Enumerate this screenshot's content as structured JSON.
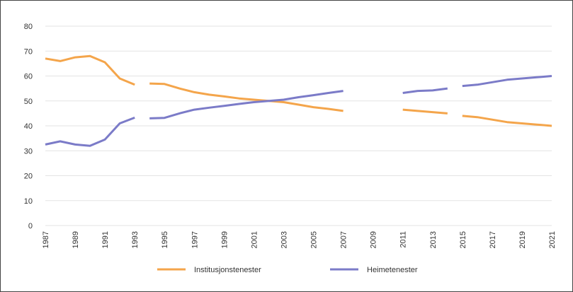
{
  "chart_data": {
    "type": "line",
    "title": "",
    "xlabel": "",
    "ylabel": "",
    "ylim": [
      0,
      80
    ],
    "yticks": [
      0,
      10,
      20,
      30,
      40,
      50,
      60,
      70,
      80
    ],
    "xlim": [
      1987,
      2021
    ],
    "xtick_labels": [
      "1987",
      "1989",
      "1991",
      "1993",
      "1995",
      "1997",
      "1999",
      "2001",
      "2003",
      "2005",
      "2007",
      "2009",
      "2011",
      "2013",
      "2015",
      "2017",
      "2019",
      "2021"
    ],
    "grid": "horizontal",
    "legend_position": "bottom",
    "series": [
      {
        "name": "Institusjonstenester",
        "color": "#f4a54b",
        "points": [
          [
            1987,
            67
          ],
          [
            1988,
            66
          ],
          [
            1989,
            67.5
          ],
          [
            1990,
            68
          ],
          [
            1991,
            65.5
          ],
          [
            1992,
            59
          ],
          [
            1993,
            56.5
          ],
          null,
          [
            1994,
            57
          ],
          [
            1995,
            56.8
          ],
          [
            1996,
            55
          ],
          [
            1997,
            53.5
          ],
          [
            1998,
            52.5
          ],
          [
            1999,
            51.8
          ],
          [
            2000,
            51
          ],
          [
            2001,
            50.5
          ],
          [
            2002,
            50
          ],
          [
            2003,
            49.5
          ],
          [
            2004,
            48.5
          ],
          [
            2005,
            47.5
          ],
          [
            2006,
            46.8
          ],
          [
            2007,
            46
          ],
          null,
          [
            2011,
            46.5
          ],
          [
            2012,
            46
          ],
          [
            2013,
            45.5
          ],
          [
            2014,
            45
          ],
          null,
          [
            2015,
            44
          ],
          [
            2016,
            43.5
          ],
          [
            2017,
            42.5
          ],
          [
            2018,
            41.5
          ],
          [
            2019,
            41
          ],
          [
            2020,
            40.5
          ],
          [
            2021,
            40
          ]
        ]
      },
      {
        "name": "Heimetenester",
        "color": "#7b7bc8",
        "points": [
          [
            1987,
            32.5
          ],
          [
            1988,
            33.8
          ],
          [
            1989,
            32.5
          ],
          [
            1990,
            32
          ],
          [
            1991,
            34.5
          ],
          [
            1992,
            41
          ],
          [
            1993,
            43.3
          ],
          null,
          [
            1994,
            43
          ],
          [
            1995,
            43.2
          ],
          [
            1996,
            45
          ],
          [
            1997,
            46.5
          ],
          [
            1998,
            47.3
          ],
          [
            1999,
            48
          ],
          [
            2000,
            48.8
          ],
          [
            2001,
            49.5
          ],
          [
            2002,
            50
          ],
          [
            2003,
            50.5
          ],
          [
            2004,
            51.5
          ],
          [
            2005,
            52.3
          ],
          [
            2006,
            53.2
          ],
          [
            2007,
            54
          ],
          null,
          [
            2011,
            53.2
          ],
          [
            2012,
            54
          ],
          [
            2013,
            54.2
          ],
          [
            2014,
            55
          ],
          null,
          [
            2015,
            56
          ],
          [
            2016,
            56.5
          ],
          [
            2017,
            57.5
          ],
          [
            2018,
            58.5
          ],
          [
            2019,
            59
          ],
          [
            2020,
            59.5
          ],
          [
            2021,
            60
          ]
        ]
      }
    ]
  }
}
